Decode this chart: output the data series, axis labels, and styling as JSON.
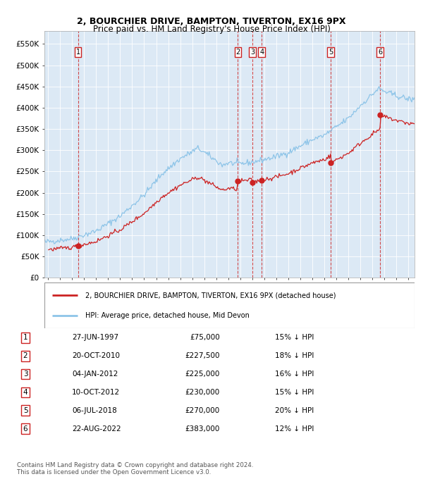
{
  "title1": "2, BOURCHIER DRIVE, BAMPTON, TIVERTON, EX16 9PX",
  "title2": "Price paid vs. HM Land Registry's House Price Index (HPI)",
  "ylim": [
    0,
    580000
  ],
  "yticks": [
    0,
    50000,
    100000,
    150000,
    200000,
    250000,
    300000,
    350000,
    400000,
    450000,
    500000,
    550000
  ],
  "ytick_labels": [
    "£0",
    "£50K",
    "£100K",
    "£150K",
    "£200K",
    "£250K",
    "£300K",
    "£350K",
    "£400K",
    "£450K",
    "£500K",
    "£550K"
  ],
  "xlim_start": 1994.7,
  "xlim_end": 2025.5,
  "plot_bg": "#dce9f5",
  "sale_dates": [
    1997.49,
    2010.8,
    2012.01,
    2012.78,
    2018.51,
    2022.64
  ],
  "sale_prices": [
    75000,
    227500,
    225000,
    230000,
    270000,
    383000
  ],
  "sale_labels": [
    "1",
    "2",
    "3",
    "4",
    "5",
    "6"
  ],
  "legend_label_red": "2, BOURCHIER DRIVE, BAMPTON, TIVERTON, EX16 9PX (detached house)",
  "legend_label_blue": "HPI: Average price, detached house, Mid Devon",
  "footer1": "Contains HM Land Registry data © Crown copyright and database right 2024.",
  "footer2": "This data is licensed under the Open Government Licence v3.0.",
  "table_rows": [
    [
      "1",
      "27-JUN-1997",
      "£75,000",
      "15% ↓ HPI"
    ],
    [
      "2",
      "20-OCT-2010",
      "£227,500",
      "18% ↓ HPI"
    ],
    [
      "3",
      "04-JAN-2012",
      "£225,000",
      "16% ↓ HPI"
    ],
    [
      "4",
      "10-OCT-2012",
      "£230,000",
      "15% ↓ HPI"
    ],
    [
      "5",
      "06-JUL-2018",
      "£270,000",
      "20% ↓ HPI"
    ],
    [
      "6",
      "22-AUG-2022",
      "£383,000",
      "12% ↓ HPI"
    ]
  ]
}
